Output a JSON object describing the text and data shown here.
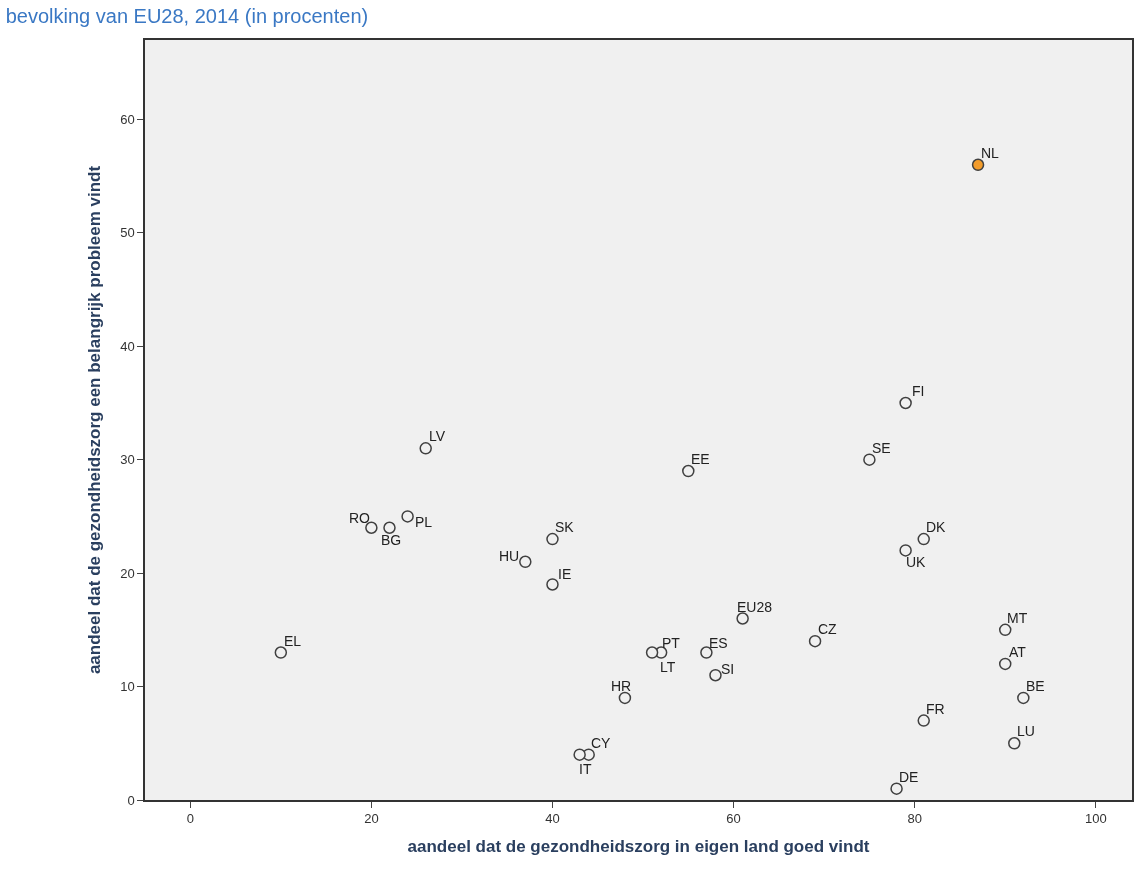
{
  "chart_data": {
    "type": "scatter",
    "title": "bevolking van EU28, 2014 (in procenten)",
    "xlabel": "aandeel dat de gezondheidszorg in eigen land goed vindt",
    "ylabel": "aandeel dat de gezondheidszorg een belangrijk probleem vindt",
    "x": [
      87,
      79,
      75,
      26,
      55,
      20,
      22,
      24,
      37,
      40,
      40,
      81,
      79,
      61,
      69,
      10,
      52,
      51,
      57,
      58,
      48,
      44,
      43,
      90,
      90,
      92,
      81,
      91,
      78
    ],
    "values": [
      56,
      35,
      30,
      31,
      29,
      24,
      24,
      25,
      21,
      23,
      19,
      23,
      22,
      16,
      14,
      13,
      13,
      13,
      13,
      11,
      9,
      4,
      4,
      15,
      12,
      9,
      7,
      5,
      1
    ],
    "colors": [
      "#f39c2b",
      "#f0f0f0",
      "#f0f0f0",
      "#f0f0f0",
      "#f0f0f0",
      "#f0f0f0",
      "#f0f0f0",
      "#f0f0f0",
      "#f0f0f0",
      "#f0f0f0",
      "#f0f0f0",
      "#f0f0f0",
      "#f0f0f0",
      "#f0f0f0",
      "#f0f0f0",
      "#f0f0f0",
      "#f0f0f0",
      "#f0f0f0",
      "#f0f0f0",
      "#f0f0f0",
      "#f0f0f0",
      "#f0f0f0",
      "#f0f0f0",
      "#f0f0f0",
      "#f0f0f0",
      "#f0f0f0",
      "#f0f0f0",
      "#f0f0f0",
      "#f0f0f0"
    ],
    "annotations": [
      {
        "text": "NL",
        "x": 87,
        "y": 56
      },
      {
        "text": "FI",
        "x": 79,
        "y": 35
      },
      {
        "text": "SE",
        "x": 75,
        "y": 30
      },
      {
        "text": "LV",
        "x": 26,
        "y": 31
      },
      {
        "text": "EE",
        "x": 55,
        "y": 29
      },
      {
        "text": "RO",
        "x": 20,
        "y": 24
      },
      {
        "text": "BG",
        "x": 22,
        "y": 24
      },
      {
        "text": "PL",
        "x": 24,
        "y": 25
      },
      {
        "text": "HU",
        "x": 37,
        "y": 21
      },
      {
        "text": "SK",
        "x": 40,
        "y": 23
      },
      {
        "text": "IE",
        "x": 40,
        "y": 19
      },
      {
        "text": "DK",
        "x": 81,
        "y": 23
      },
      {
        "text": "UK",
        "x": 79,
        "y": 22
      },
      {
        "text": "EU28",
        "x": 61,
        "y": 16
      },
      {
        "text": "CZ",
        "x": 69,
        "y": 14
      },
      {
        "text": "EL",
        "x": 10,
        "y": 13
      },
      {
        "text": "PT",
        "x": 52,
        "y": 13
      },
      {
        "text": "LT",
        "x": 51,
        "y": 13
      },
      {
        "text": "ES",
        "x": 57,
        "y": 13
      },
      {
        "text": "SI",
        "x": 58,
        "y": 11
      },
      {
        "text": "HR",
        "x": 48,
        "y": 9
      },
      {
        "text": "CY",
        "x": 44,
        "y": 4
      },
      {
        "text": "IT",
        "x": 43,
        "y": 4
      },
      {
        "text": "MT",
        "x": 90,
        "y": 15
      },
      {
        "text": "AT",
        "x": 90,
        "y": 12
      },
      {
        "text": "BE",
        "x": 92,
        "y": 9
      },
      {
        "text": "FR",
        "x": 81,
        "y": 7
      },
      {
        "text": "LU",
        "x": 91,
        "y": 5
      },
      {
        "text": "DE",
        "x": 78,
        "y": 1
      }
    ],
    "xlim": [
      -5,
      104
    ],
    "ylim": [
      0,
      67
    ],
    "xticks": [
      0,
      20,
      40,
      60,
      80,
      100
    ],
    "yticks": [
      0,
      10,
      20,
      30,
      40,
      50,
      60
    ],
    "marker": "circle",
    "grid": false
  }
}
